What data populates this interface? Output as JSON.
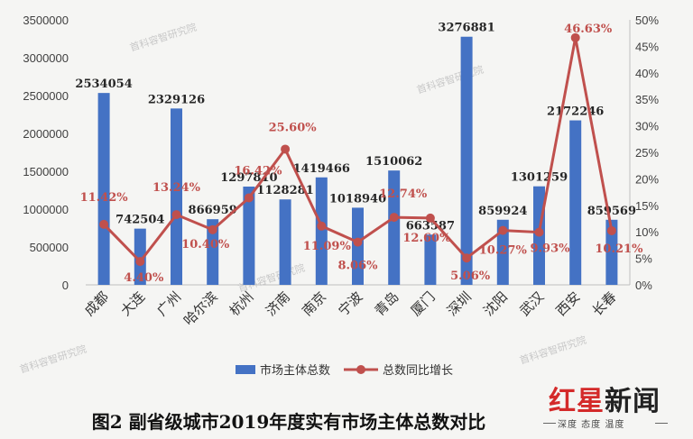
{
  "chart_data": {
    "type": "bar+line",
    "title": "图2 副省级城市2019年度实有市场主体总数对比",
    "categories": [
      "成都",
      "大连",
      "广州",
      "哈尔滨",
      "杭州",
      "济南",
      "南京",
      "宁波",
      "青岛",
      "厦门",
      "深圳",
      "沈阳",
      "武汉",
      "西安",
      "长春"
    ],
    "series": [
      {
        "name": "市场主体总数",
        "kind": "bar",
        "axis": "left",
        "color": "#4472c4",
        "values": [
          2534054,
          742504,
          2329126,
          866959,
          1297810,
          1128281,
          1419466,
          1018940,
          1510062,
          663587,
          3276881,
          859924,
          1301259,
          2172246,
          859569
        ],
        "labels": [
          "2534054",
          "742504",
          "2329126",
          "866959",
          "1297810",
          "1128281",
          "1419466",
          "1018940",
          "1510062",
          "663587",
          "3276881",
          "859924",
          "1301259",
          "2172246",
          "859569"
        ]
      },
      {
        "name": "总数同比增长",
        "kind": "line",
        "axis": "right",
        "color": "#c0504d",
        "values": [
          11.42,
          4.4,
          13.24,
          10.4,
          16.42,
          25.6,
          11.09,
          8.06,
          12.74,
          12.6,
          5.06,
          10.27,
          9.93,
          46.63,
          10.21
        ],
        "labels": [
          "11.42%",
          "4.40%",
          "13.24%",
          "10.40%",
          "16.42%",
          "25.60%",
          "11.09%",
          "8.06%",
          "12.74%",
          "12.60%",
          "5.06%",
          "10.27%",
          "9.93%",
          "46.63%",
          "10.21%"
        ]
      }
    ],
    "ylim_left": [
      0,
      3500000
    ],
    "ylim_right": [
      0,
      50
    ],
    "left_ticks": [
      "0",
      "500000",
      "1000000",
      "1500000",
      "2000000",
      "2500000",
      "3000000",
      "3500000"
    ],
    "right_ticks": [
      "0%",
      "5%",
      "10%",
      "15%",
      "20%",
      "25%",
      "30%",
      "35%",
      "40%",
      "45%",
      "50%"
    ],
    "legend_position": "bottom",
    "grid": false
  },
  "watermark": "首科容智研究院",
  "caption": "图2 副省级城市2019年度实有市场主体总数对比",
  "logo": {
    "main_red": "红星",
    "main_dark": "新闻",
    "tagline": "深度 态度 温度"
  }
}
